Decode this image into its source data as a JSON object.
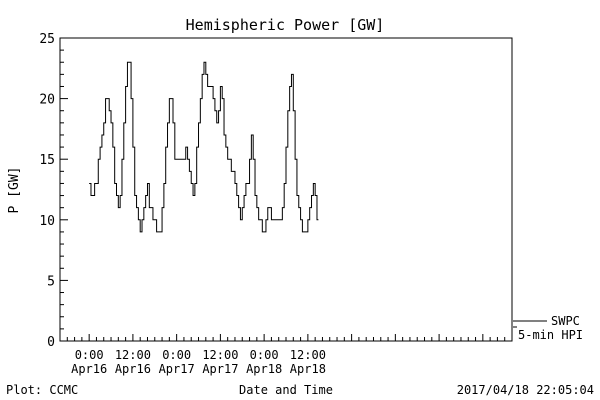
{
  "chart_data": {
    "type": "line",
    "title": "Hemispheric Power [GW]",
    "xlabel": "Date and Time",
    "ylabel": "P [GW]",
    "ylim": [
      0,
      25
    ],
    "yticks": [
      0,
      5,
      10,
      15,
      20,
      25
    ],
    "x_hours_range": [
      -8,
      116
    ],
    "xticks": [
      {
        "h": 0,
        "line1": "0:00",
        "line2": "Apr16"
      },
      {
        "h": 12,
        "line1": "12:00",
        "line2": "Apr16"
      },
      {
        "h": 24,
        "line1": "0:00",
        "line2": "Apr17"
      },
      {
        "h": 36,
        "line1": "12:00",
        "line2": "Apr17"
      },
      {
        "h": 48,
        "line1": "0:00",
        "line2": "Apr18"
      },
      {
        "h": 60,
        "line1": "12:00",
        "line2": "Apr18"
      }
    ],
    "legend": [
      {
        "label": "SWPC"
      },
      {
        "label": "5-min HPI"
      }
    ],
    "footer_left": "Plot: CCMC",
    "footer_right": "2017/04/18 22:05:04",
    "series": [
      {
        "points": [
          [
            0.0,
            13
          ],
          [
            0.5,
            12
          ],
          [
            1.0,
            12
          ],
          [
            1.5,
            13
          ],
          [
            2.0,
            13
          ],
          [
            2.5,
            15
          ],
          [
            3.0,
            16
          ],
          [
            3.5,
            17
          ],
          [
            4.0,
            18
          ],
          [
            4.5,
            20
          ],
          [
            5.0,
            20
          ],
          [
            5.5,
            19
          ],
          [
            6.0,
            18
          ],
          [
            6.5,
            16
          ],
          [
            7.0,
            13
          ],
          [
            7.5,
            12
          ],
          [
            8.0,
            11
          ],
          [
            8.5,
            12
          ],
          [
            9.0,
            15
          ],
          [
            9.5,
            18
          ],
          [
            10.0,
            21
          ],
          [
            10.5,
            23
          ],
          [
            11.0,
            23
          ],
          [
            11.5,
            20
          ],
          [
            12.0,
            16
          ],
          [
            12.5,
            12
          ],
          [
            13.0,
            11
          ],
          [
            13.5,
            10
          ],
          [
            14.0,
            9
          ],
          [
            14.5,
            10
          ],
          [
            15.0,
            11
          ],
          [
            15.5,
            12
          ],
          [
            16.0,
            13
          ],
          [
            16.5,
            11
          ],
          [
            17.0,
            11
          ],
          [
            17.5,
            10
          ],
          [
            18.0,
            10
          ],
          [
            18.5,
            9
          ],
          [
            19.0,
            9
          ],
          [
            19.5,
            9
          ],
          [
            20.0,
            11
          ],
          [
            20.5,
            13
          ],
          [
            21.0,
            16
          ],
          [
            21.5,
            18
          ],
          [
            22.0,
            20
          ],
          [
            22.5,
            20
          ],
          [
            23.0,
            18
          ],
          [
            23.5,
            15
          ],
          [
            24.0,
            15
          ],
          [
            25.0,
            15
          ],
          [
            26.0,
            15
          ],
          [
            26.5,
            16
          ],
          [
            27.0,
            15
          ],
          [
            27.5,
            14
          ],
          [
            28.0,
            13
          ],
          [
            28.5,
            12
          ],
          [
            29.0,
            13
          ],
          [
            29.5,
            16
          ],
          [
            30.0,
            18
          ],
          [
            30.5,
            20
          ],
          [
            31.0,
            22
          ],
          [
            31.5,
            23
          ],
          [
            32.0,
            22
          ],
          [
            32.5,
            21
          ],
          [
            33.0,
            21
          ],
          [
            33.5,
            21
          ],
          [
            34.0,
            20
          ],
          [
            34.5,
            19
          ],
          [
            35.0,
            18
          ],
          [
            35.5,
            19
          ],
          [
            36.0,
            21
          ],
          [
            36.5,
            20
          ],
          [
            37.0,
            17
          ],
          [
            37.5,
            16
          ],
          [
            38.0,
            15
          ],
          [
            38.5,
            15
          ],
          [
            39.0,
            14
          ],
          [
            39.5,
            14
          ],
          [
            40.0,
            13
          ],
          [
            40.5,
            12
          ],
          [
            41.0,
            11
          ],
          [
            41.5,
            10
          ],
          [
            42.0,
            11
          ],
          [
            42.5,
            12
          ],
          [
            43.0,
            13
          ],
          [
            43.5,
            13
          ],
          [
            44.0,
            15
          ],
          [
            44.5,
            17
          ],
          [
            45.0,
            15
          ],
          [
            45.5,
            12
          ],
          [
            46.0,
            11
          ],
          [
            46.5,
            10
          ],
          [
            47.0,
            10
          ],
          [
            47.5,
            9
          ],
          [
            48.0,
            9
          ],
          [
            48.5,
            10
          ],
          [
            49.0,
            11
          ],
          [
            49.5,
            11
          ],
          [
            50.0,
            10
          ],
          [
            50.5,
            10
          ],
          [
            51.0,
            10
          ],
          [
            51.5,
            10
          ],
          [
            52.0,
            10
          ],
          [
            52.5,
            10
          ],
          [
            53.0,
            11
          ],
          [
            53.5,
            13
          ],
          [
            54.0,
            16
          ],
          [
            54.5,
            19
          ],
          [
            55.0,
            21
          ],
          [
            55.5,
            22
          ],
          [
            56.0,
            19
          ],
          [
            56.5,
            15
          ],
          [
            57.0,
            12
          ],
          [
            57.5,
            11
          ],
          [
            58.0,
            10
          ],
          [
            58.5,
            9
          ],
          [
            59.0,
            9
          ],
          [
            59.5,
            9
          ],
          [
            60.0,
            10
          ],
          [
            60.5,
            11
          ],
          [
            61.0,
            12
          ],
          [
            61.5,
            13
          ],
          [
            62.0,
            12
          ],
          [
            62.5,
            10
          ]
        ]
      }
    ]
  }
}
